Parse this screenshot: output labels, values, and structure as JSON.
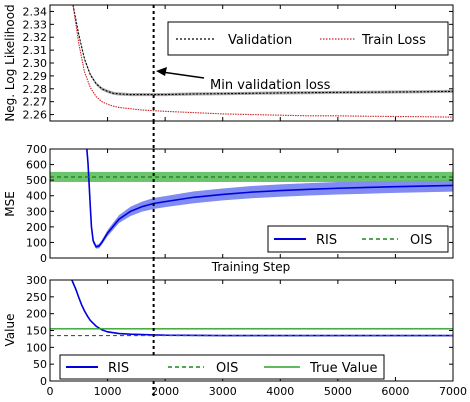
{
  "chart_data": [
    {
      "type": "line",
      "ylabel": "Neg. Log Likelihood",
      "xlim": [
        0,
        7000
      ],
      "ylim": [
        2.255,
        2.345
      ],
      "yticks": [
        2.26,
        2.27,
        2.28,
        2.29,
        2.3,
        2.31,
        2.32,
        2.33,
        2.34
      ],
      "grid": false,
      "legend": "top-right",
      "annotation": {
        "text": "Min validation loss",
        "x": 1800,
        "y": 2.3
      },
      "vline_x": 1800,
      "series": [
        {
          "name": "Validation",
          "color": "#000000",
          "x": [
            400,
            500,
            600,
            700,
            800,
            900,
            1000,
            1100,
            1200,
            1400,
            1600,
            1800,
            2000,
            2500,
            3000,
            3500,
            4000,
            4500,
            5000,
            5500,
            6000,
            6500,
            7000
          ],
          "y": [
            2.345,
            2.322,
            2.303,
            2.291,
            2.284,
            2.28,
            2.278,
            2.2765,
            2.276,
            2.2755,
            2.2755,
            2.2755,
            2.2755,
            2.276,
            2.2762,
            2.2765,
            2.2768,
            2.277,
            2.2772,
            2.2773,
            2.2775,
            2.2777,
            2.278
          ],
          "band": 0.0012
        },
        {
          "name": "Train Loss",
          "color": "#cc2222",
          "x": [
            400,
            500,
            600,
            700,
            800,
            900,
            1000,
            1100,
            1200,
            1400,
            1600,
            1800,
            2000,
            2500,
            3000,
            3500,
            4000,
            4500,
            5000,
            5500,
            6000,
            6500,
            7000
          ],
          "y": [
            2.345,
            2.315,
            2.293,
            2.281,
            2.274,
            2.27,
            2.268,
            2.2665,
            2.2655,
            2.2645,
            2.2635,
            2.263,
            2.2625,
            2.2615,
            2.2605,
            2.26,
            2.2595,
            2.259,
            2.259,
            2.2587,
            2.2585,
            2.2583,
            2.258
          ]
        }
      ]
    },
    {
      "type": "line",
      "ylabel": "MSE",
      "xlabel": "Training Step",
      "xlim": [
        0,
        7000
      ],
      "ylim": [
        0,
        700
      ],
      "yticks": [
        0,
        100,
        200,
        300,
        400,
        500,
        600,
        700
      ],
      "grid": false,
      "legend": "bottom-right",
      "vline_x": 1800,
      "series": [
        {
          "name": "RIS",
          "color": "#0000dd",
          "x": [
            640,
            660,
            680,
            700,
            720,
            750,
            800,
            850,
            900,
            1000,
            1200,
            1400,
            1600,
            1800,
            2000,
            2500,
            3000,
            3500,
            4000,
            4500,
            5000,
            5500,
            6000,
            6500,
            7000
          ],
          "y": [
            700,
            610,
            470,
            330,
            200,
            110,
            72,
            76,
            100,
            160,
            250,
            300,
            330,
            350,
            362,
            390,
            408,
            423,
            433,
            441,
            448,
            453,
            458,
            462,
            466
          ],
          "band_lo": [
            700,
            600,
            455,
            310,
            180,
            95,
            60,
            62,
            85,
            140,
            225,
            270,
            298,
            315,
            327,
            352,
            370,
            384,
            393,
            401,
            408,
            413,
            418,
            422,
            426
          ],
          "band_hi": [
            700,
            620,
            485,
            350,
            220,
            125,
            85,
            90,
            115,
            180,
            275,
            330,
            362,
            385,
            397,
            428,
            446,
            462,
            473,
            481,
            488,
            493,
            498,
            502,
            506
          ]
        },
        {
          "name": "OIS",
          "color": "#2ca02c",
          "value": 520,
          "band": [
            488,
            553
          ]
        }
      ]
    },
    {
      "type": "line",
      "ylabel": "Value",
      "xlim": [
        0,
        7000
      ],
      "ylim": [
        0,
        300
      ],
      "xticks": [
        0,
        1000,
        2000,
        3000,
        4000,
        5000,
        6000,
        7000
      ],
      "yticks": [
        0,
        50,
        100,
        150,
        200,
        250,
        300
      ],
      "grid": false,
      "legend": "bottom",
      "vline_x": 1800,
      "series": [
        {
          "name": "RIS",
          "color": "#0000dd",
          "x": [
            380,
            450,
            500,
            550,
            600,
            650,
            700,
            800,
            900,
            1000,
            1200,
            1400,
            1600,
            1800,
            2000,
            3000,
            4000,
            5000,
            6000,
            7000
          ],
          "y": [
            300,
            272,
            248,
            226,
            208,
            193,
            180,
            163,
            152,
            146,
            141,
            139,
            138,
            137,
            136,
            135,
            135,
            135,
            135,
            135
          ]
        },
        {
          "name": "OIS",
          "color": "#2ca02c",
          "value": 135
        },
        {
          "name": "True Value",
          "color": "#2ca02c",
          "value": 155
        }
      ]
    }
  ]
}
